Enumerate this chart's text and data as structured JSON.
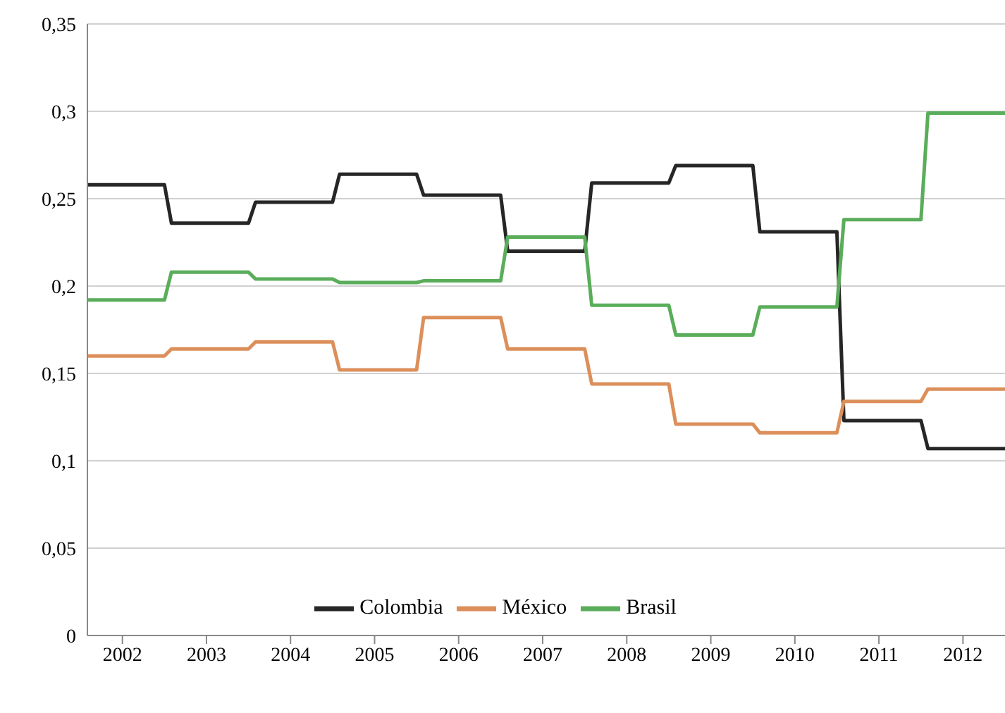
{
  "chart_data": {
    "type": "line",
    "x": [
      "2002-01",
      "2002-12",
      "2003-01",
      "2003-12",
      "2004-01",
      "2004-12",
      "2005-01",
      "2005-12",
      "2006-01",
      "2006-12",
      "2007-01",
      "2007-12",
      "2008-01",
      "2008-12",
      "2009-01",
      "2009-12",
      "2010-01",
      "2010-12",
      "2011-01",
      "2011-12",
      "2012-01",
      "2012-12"
    ],
    "series": [
      {
        "name": "Colombia",
        "color": "#262626",
        "values": [
          0.258,
          0.258,
          0.236,
          0.236,
          0.248,
          0.248,
          0.264,
          0.264,
          0.252,
          0.252,
          0.22,
          0.22,
          0.259,
          0.259,
          0.269,
          0.269,
          0.231,
          0.231,
          0.123,
          0.123,
          0.107,
          0.107
        ]
      },
      {
        "name": "México",
        "color": "#dc8f5a",
        "values": [
          0.16,
          0.16,
          0.164,
          0.164,
          0.168,
          0.168,
          0.152,
          0.152,
          0.182,
          0.182,
          0.164,
          0.164,
          0.144,
          0.144,
          0.121,
          0.121,
          0.116,
          0.116,
          0.134,
          0.134,
          0.141,
          0.141
        ]
      },
      {
        "name": "Brasil",
        "color": "#5aad5a",
        "values": [
          0.192,
          0.192,
          0.208,
          0.208,
          0.204,
          0.204,
          0.202,
          0.202,
          0.203,
          0.203,
          0.228,
          0.228,
          0.189,
          0.189,
          0.172,
          0.172,
          0.188,
          0.188,
          0.238,
          0.238,
          0.299,
          0.299
        ]
      }
    ],
    "xlim": [
      "2002-01",
      "2012-12"
    ],
    "xticks": [
      {
        "value": "2002-06",
        "label": "2002"
      },
      {
        "value": "2003-06",
        "label": "2003"
      },
      {
        "value": "2004-06",
        "label": "2004"
      },
      {
        "value": "2005-06",
        "label": "2005"
      },
      {
        "value": "2006-06",
        "label": "2006"
      },
      {
        "value": "2007-06",
        "label": "2007"
      },
      {
        "value": "2008-06",
        "label": "2008"
      },
      {
        "value": "2009-06",
        "label": "2009"
      },
      {
        "value": "2010-06",
        "label": "2010"
      },
      {
        "value": "2011-06",
        "label": "2011"
      },
      {
        "value": "2012-06",
        "label": "2012"
      }
    ],
    "ylim": [
      0,
      0.35
    ],
    "yticks": [
      0,
      {
        "value": 0.05,
        "label": "0,05"
      },
      {
        "value": 0.1,
        "label": "0,1"
      },
      {
        "value": 0.15,
        "label": "0,15"
      },
      {
        "value": 0.2,
        "label": "0,2"
      },
      {
        "value": 0.25,
        "label": "0,25"
      },
      {
        "value": 0.3,
        "label": "0,3"
      },
      {
        "value": 0.35,
        "label": "0,35"
      }
    ],
    "grid": "y",
    "legend": "bottom",
    "line_style": "solid"
  }
}
